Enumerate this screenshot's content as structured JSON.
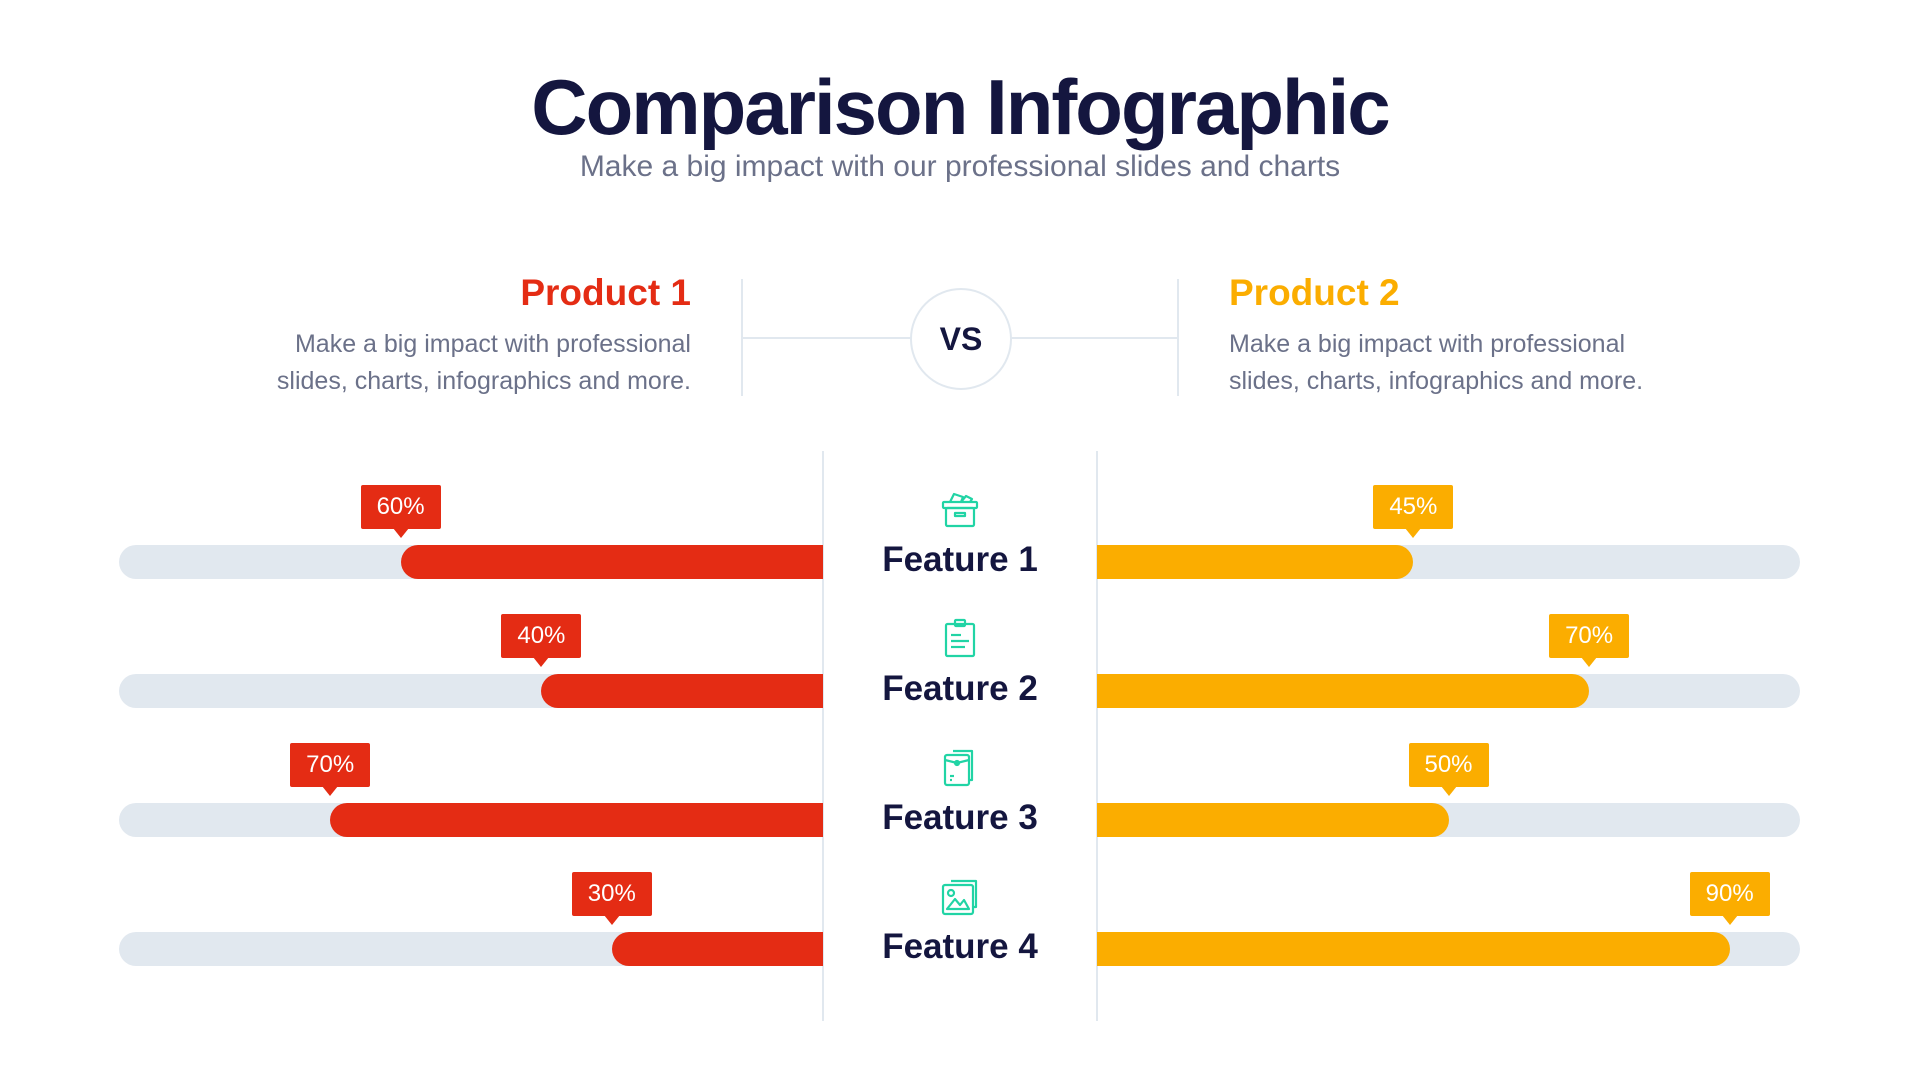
{
  "header": {
    "title": "Comparison Infographic",
    "subtitle": "Make a big impact with our professional slides and charts"
  },
  "colors": {
    "product1": "#e42c14",
    "product2": "#fbad00",
    "track": "#e1e8ef",
    "icon": "#21d4a5",
    "text": "#14163f"
  },
  "products": [
    {
      "name": "Product 1",
      "description": "Make a big impact with professional slides, charts, infographics and more."
    },
    {
      "name": "Product 2",
      "description": "Make a big impact with professional slides, charts, infographics and more."
    }
  ],
  "vs_label": "VS",
  "features": [
    {
      "label": "Feature 1",
      "icon": "box-icon",
      "product1": 60,
      "product1_label": "60%",
      "product2": 45,
      "product2_label": "45%"
    },
    {
      "label": "Feature 2",
      "icon": "clipboard-icon",
      "product1": 40,
      "product1_label": "40%",
      "product2": 70,
      "product2_label": "70%"
    },
    {
      "label": "Feature 3",
      "icon": "envelope-icon",
      "product1": 70,
      "product1_label": "70%",
      "product2": 50,
      "product2_label": "50%"
    },
    {
      "label": "Feature 4",
      "icon": "image-icon",
      "product1": 30,
      "product1_label": "30%",
      "product2": 90,
      "product2_label": "90%"
    }
  ]
}
